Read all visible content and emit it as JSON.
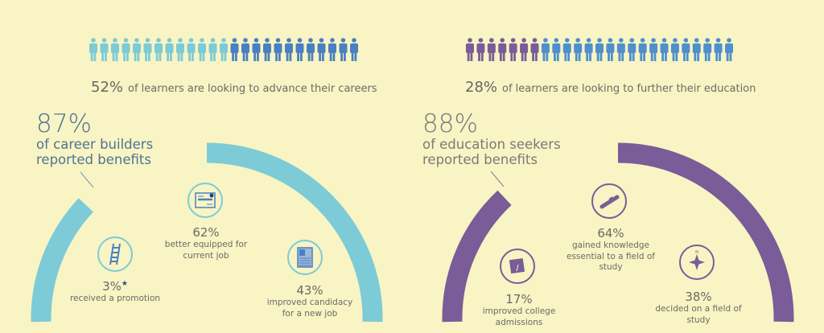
{
  "colors": {
    "background": "#f8f4c4",
    "career_highlight": "#7ccbd6",
    "career_rest": "#4a80c0",
    "education_highlight": "#7a5c98",
    "education_rest": "#4f8fcc"
  },
  "career": {
    "people_total": 25,
    "people_highlight": 13,
    "caption_pct": "52%",
    "caption_text": "of learners are looking to advance their careers",
    "headline_pct": "87%",
    "headline_line1": "of career builders",
    "headline_line2": "reported benefits",
    "arc_fraction": 0.87,
    "stats": [
      {
        "icon": "ladder-icon",
        "pct": "3%",
        "star": "★",
        "lines": [
          "received a promotion"
        ]
      },
      {
        "icon": "certificate-icon",
        "pct": "62%",
        "lines": [
          "better equipped for",
          "current job"
        ]
      },
      {
        "icon": "resume-icon",
        "pct": "43%",
        "lines": [
          "improved candidacy",
          "for a new job"
        ]
      }
    ]
  },
  "education": {
    "people_total": 25,
    "people_highlight": 7,
    "caption_pct": "28%",
    "caption_text": "of learners are looking to further their education",
    "headline_pct": "88%",
    "headline_line1": "of education seekers",
    "headline_line2": "reported benefits",
    "arc_fraction": 0.88,
    "stats": [
      {
        "icon": "notebook-icon",
        "pct": "17%",
        "lines": [
          "improved college",
          "admissions"
        ]
      },
      {
        "icon": "diploma-scroll-icon",
        "pct": "64%",
        "lines": [
          "gained knowledge",
          "essential to a field of",
          "study"
        ]
      },
      {
        "icon": "compass-icon",
        "compass_label": "N",
        "pct": "38%",
        "lines": [
          "decided on a field of",
          "study"
        ]
      }
    ]
  }
}
